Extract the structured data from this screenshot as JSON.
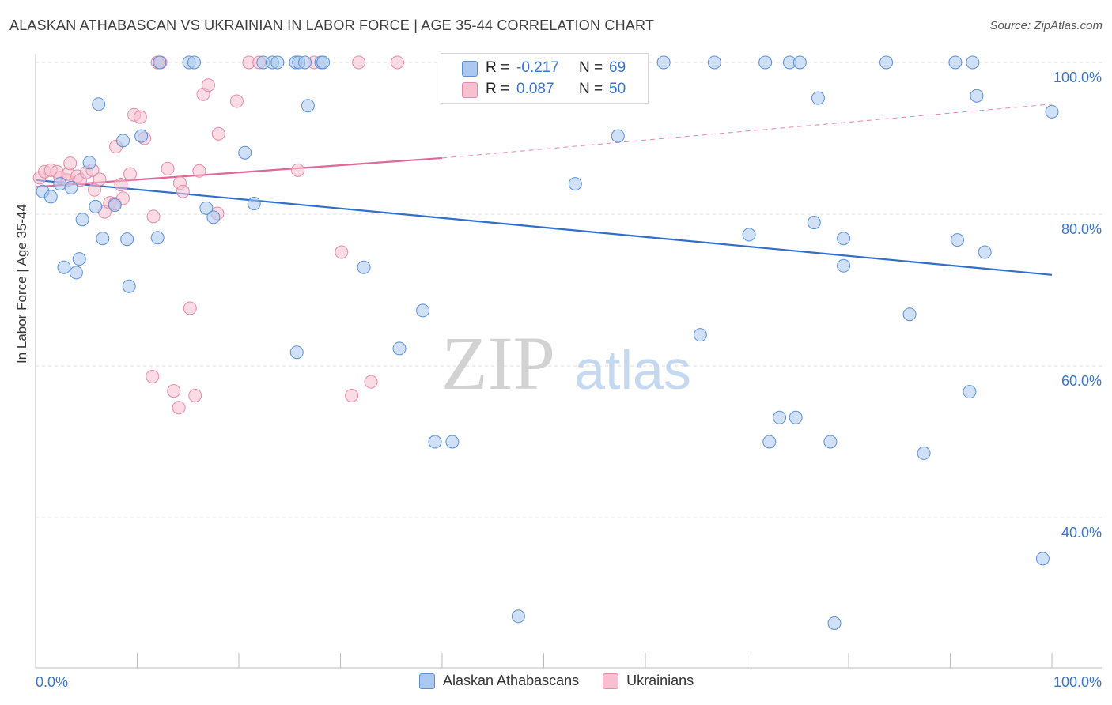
{
  "title": "ALASKAN ATHABASCAN VS UKRAINIAN IN LABOR FORCE | AGE 35-44 CORRELATION CHART",
  "source": "Source: ZipAtlas.com",
  "watermark": {
    "zip": "ZIP",
    "atlas": "atlas"
  },
  "colors": {
    "blue_fill": "#aac8f0",
    "blue_stroke": "#5b8fd6",
    "blue_line": "#2f6fcb",
    "pink_fill": "#f7bfd0",
    "pink_stroke": "#e58aa8",
    "pink_line": "#e0679a",
    "axis_label": "#3a74c8",
    "grid": "#dddddd"
  },
  "stats": {
    "r_label": "R =",
    "n_label": "N =",
    "blue": {
      "r": "-0.217",
      "n": "69"
    },
    "pink": {
      "r": "0.087",
      "n": "50"
    }
  },
  "chart_data": {
    "type": "scatter",
    "xlabel": "",
    "ylabel": "In Labor Force | Age 35-44",
    "xlim": [
      0,
      100
    ],
    "ylim": [
      20,
      103
    ],
    "x_tick_labels": [
      "0.0%",
      "100.0%"
    ],
    "y_tick_labels": [
      "100.0%",
      "80.0%",
      "60.0%",
      "40.0%"
    ],
    "y_ticks": [
      100,
      80,
      60,
      40
    ],
    "grid": true,
    "legend_position": "bottom",
    "series": [
      {
        "name": "Alaskan Athabascans",
        "trend": {
          "x0": 0,
          "y0": 84.5,
          "x1": 100,
          "y1": 72.0
        },
        "points": [
          [
            0.7,
            83.0
          ],
          [
            1.5,
            82.3
          ],
          [
            2.4,
            84.0
          ],
          [
            3.5,
            83.5
          ],
          [
            2.8,
            73.0
          ],
          [
            4.0,
            72.3
          ],
          [
            4.3,
            74.1
          ],
          [
            4.6,
            79.3
          ],
          [
            5.3,
            86.8
          ],
          [
            5.9,
            81.0
          ],
          [
            6.2,
            94.5
          ],
          [
            6.6,
            76.8
          ],
          [
            7.8,
            81.2
          ],
          [
            8.6,
            89.7
          ],
          [
            9.0,
            76.7
          ],
          [
            9.2,
            70.5
          ],
          [
            10.4,
            90.3
          ],
          [
            12.0,
            76.9
          ],
          [
            12.2,
            100
          ],
          [
            15.1,
            100
          ],
          [
            15.6,
            100
          ],
          [
            16.8,
            80.8
          ],
          [
            17.5,
            79.6
          ],
          [
            20.6,
            88.1
          ],
          [
            21.5,
            81.4
          ],
          [
            22.4,
            100
          ],
          [
            23.3,
            100
          ],
          [
            23.8,
            100
          ],
          [
            25.6,
            100
          ],
          [
            25.9,
            100
          ],
          [
            26.5,
            100
          ],
          [
            28.1,
            100
          ],
          [
            25.7,
            61.8
          ],
          [
            26.8,
            94.3
          ],
          [
            28.3,
            100
          ],
          [
            32.3,
            73.0
          ],
          [
            35.8,
            62.3
          ],
          [
            38.1,
            67.3
          ],
          [
            39.3,
            50.0
          ],
          [
            41.0,
            50.0
          ],
          [
            47.5,
            27.0
          ],
          [
            53.1,
            84.0
          ],
          [
            57.3,
            90.3
          ],
          [
            61.8,
            100
          ],
          [
            66.8,
            100
          ],
          [
            65.4,
            64.1
          ],
          [
            70.2,
            77.3
          ],
          [
            71.8,
            100
          ],
          [
            73.2,
            53.2
          ],
          [
            72.2,
            50.0
          ],
          [
            74.2,
            100
          ],
          [
            75.2,
            100
          ],
          [
            74.8,
            53.2
          ],
          [
            77.0,
            95.3
          ],
          [
            76.6,
            78.9
          ],
          [
            78.2,
            50.0
          ],
          [
            78.6,
            26.1
          ],
          [
            79.5,
            76.8
          ],
          [
            79.5,
            73.2
          ],
          [
            83.7,
            100
          ],
          [
            86.0,
            66.8
          ],
          [
            87.4,
            48.5
          ],
          [
            90.5,
            100
          ],
          [
            90.7,
            76.6
          ],
          [
            91.9,
            56.6
          ],
          [
            92.2,
            100
          ],
          [
            92.6,
            95.6
          ],
          [
            93.4,
            75.0
          ],
          [
            100,
            93.5
          ],
          [
            99.1,
            34.6
          ]
        ]
      },
      {
        "name": "Ukrainians",
        "trend": {
          "x0": 0,
          "y0": 83.6,
          "x1": 40,
          "y1": 87.4,
          "dash_to": {
            "x": 100,
            "y": 94.5
          }
        },
        "points": [
          [
            0.4,
            84.8
          ],
          [
            0.9,
            85.6
          ],
          [
            1.5,
            85.8
          ],
          [
            2.1,
            85.6
          ],
          [
            2.4,
            84.8
          ],
          [
            3.1,
            84.5
          ],
          [
            3.2,
            85.3
          ],
          [
            3.4,
            86.7
          ],
          [
            4.1,
            85.0
          ],
          [
            4.4,
            84.5
          ],
          [
            5.0,
            85.5
          ],
          [
            5.6,
            85.8
          ],
          [
            5.8,
            83.2
          ],
          [
            6.3,
            84.6
          ],
          [
            6.8,
            80.3
          ],
          [
            7.3,
            81.5
          ],
          [
            7.8,
            81.4
          ],
          [
            7.9,
            88.9
          ],
          [
            8.4,
            83.9
          ],
          [
            8.6,
            82.1
          ],
          [
            9.3,
            85.3
          ],
          [
            9.7,
            93.1
          ],
          [
            10.3,
            92.8
          ],
          [
            10.7,
            90.0
          ],
          [
            11.6,
            79.7
          ],
          [
            12.0,
            100
          ],
          [
            12.3,
            100
          ],
          [
            13.0,
            86.0
          ],
          [
            14.2,
            84.1
          ],
          [
            14.5,
            83.0
          ],
          [
            11.5,
            58.6
          ],
          [
            13.6,
            56.7
          ],
          [
            14.1,
            54.5
          ],
          [
            15.2,
            67.6
          ],
          [
            15.7,
            56.1
          ],
          [
            16.1,
            85.7
          ],
          [
            16.5,
            95.8
          ],
          [
            17.0,
            97.0
          ],
          [
            17.9,
            80.1
          ],
          [
            18.0,
            90.6
          ],
          [
            19.8,
            94.9
          ],
          [
            21.0,
            100
          ],
          [
            22.0,
            100
          ],
          [
            25.8,
            85.8
          ],
          [
            27.4,
            100
          ],
          [
            30.1,
            75.0
          ],
          [
            31.1,
            56.1
          ],
          [
            31.8,
            100
          ],
          [
            33.0,
            57.9
          ],
          [
            35.6,
            100
          ]
        ]
      }
    ]
  }
}
